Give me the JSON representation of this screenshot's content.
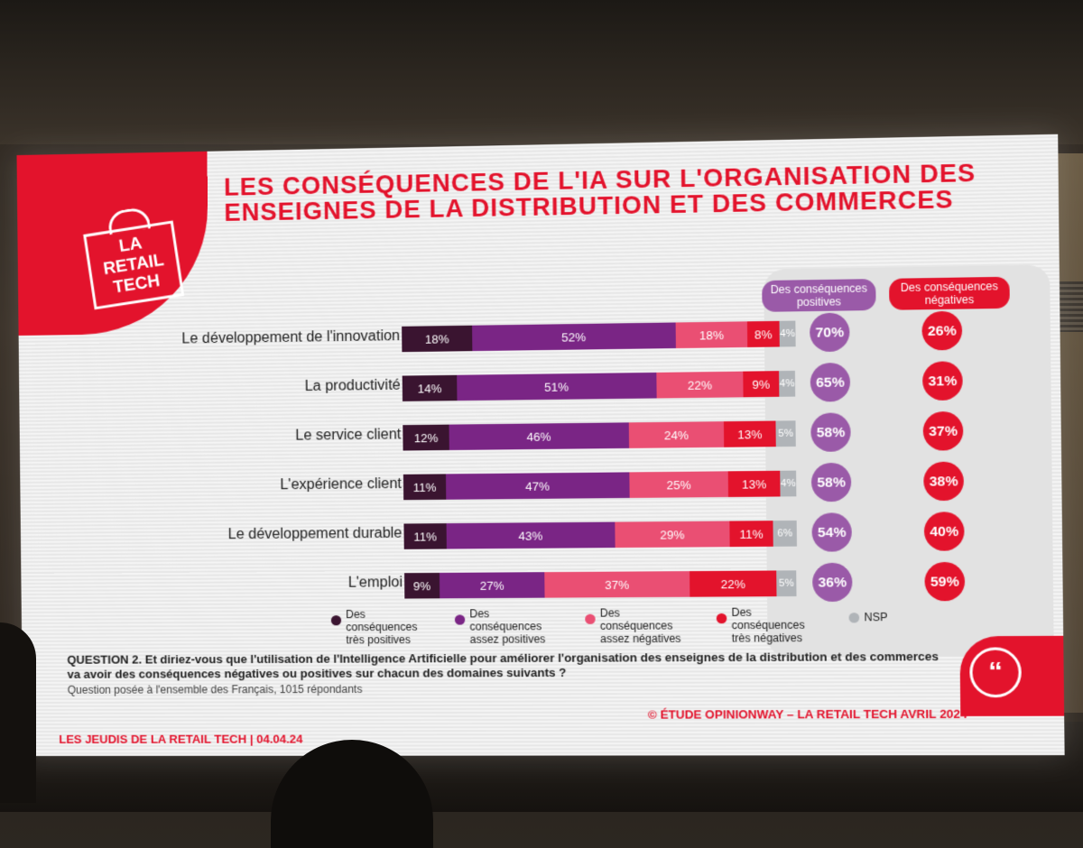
{
  "title": "LES CONSÉQUENCES DE L'IA SUR L'ORGANISATION DES ENSEIGNES DE LA DISTRIBUTION ET DES COMMERCES",
  "logo_text": "LA RETAIL TECH",
  "header_positive": "Des conséquences positives",
  "header_negative": "Des conséquences négatives",
  "colors": {
    "tres_positives": "#3a1430",
    "assez_positives": "#7a2585",
    "assez_negatives": "#ea4f73",
    "tres_negatives": "#e3132c",
    "nsp": "#b0b4b8",
    "positive_circle": "#9a5aa8",
    "negative_circle": "#e3132c"
  },
  "legend": [
    {
      "label": "Des conséquences très positives"
    },
    {
      "label": "Des conséquences assez positives"
    },
    {
      "label": "Des conséquences assez négatives"
    },
    {
      "label": "Des conséquences très négatives"
    },
    {
      "label": "NSP"
    }
  ],
  "rows": [
    {
      "label": "Le développement de l'innovation",
      "values": [
        "18%",
        "52%",
        "18%",
        "8%",
        "4%"
      ],
      "positive": "70%",
      "negative": "26%"
    },
    {
      "label": "La productivité",
      "values": [
        "14%",
        "51%",
        "22%",
        "9%",
        "4%"
      ],
      "positive": "65%",
      "negative": "31%"
    },
    {
      "label": "Le service client",
      "values": [
        "12%",
        "46%",
        "24%",
        "13%",
        "5%"
      ],
      "positive": "58%",
      "negative": "37%"
    },
    {
      "label": "L'expérience client",
      "values": [
        "11%",
        "47%",
        "25%",
        "13%",
        "4%"
      ],
      "positive": "58%",
      "negative": "38%"
    },
    {
      "label": "Le développement durable",
      "values": [
        "11%",
        "43%",
        "29%",
        "11%",
        "6%"
      ],
      "positive": "54%",
      "negative": "40%"
    },
    {
      "label": "L'emploi",
      "values": [
        "9%",
        "27%",
        "37%",
        "22%",
        "5%"
      ],
      "positive": "36%",
      "negative": "59%"
    }
  ],
  "question": "QUESTION 2. Et diriez-vous que l'utilisation de l'Intelligence Artificielle pour améliorer l'organisation des enseignes de la distribution et des commerces va avoir des conséquences négatives ou positives sur chacun des domaines suivants ?",
  "sample": "Question posée à l'ensemble des Français, 1015 répondants",
  "footer_left": "LES JEUDIS DE LA RETAIL TECH | 04.04.24",
  "footer_right": "© ÉTUDE OPINIONWAY – LA RETAIL TECH AVRIL 2024",
  "quote_glyph": "“"
}
